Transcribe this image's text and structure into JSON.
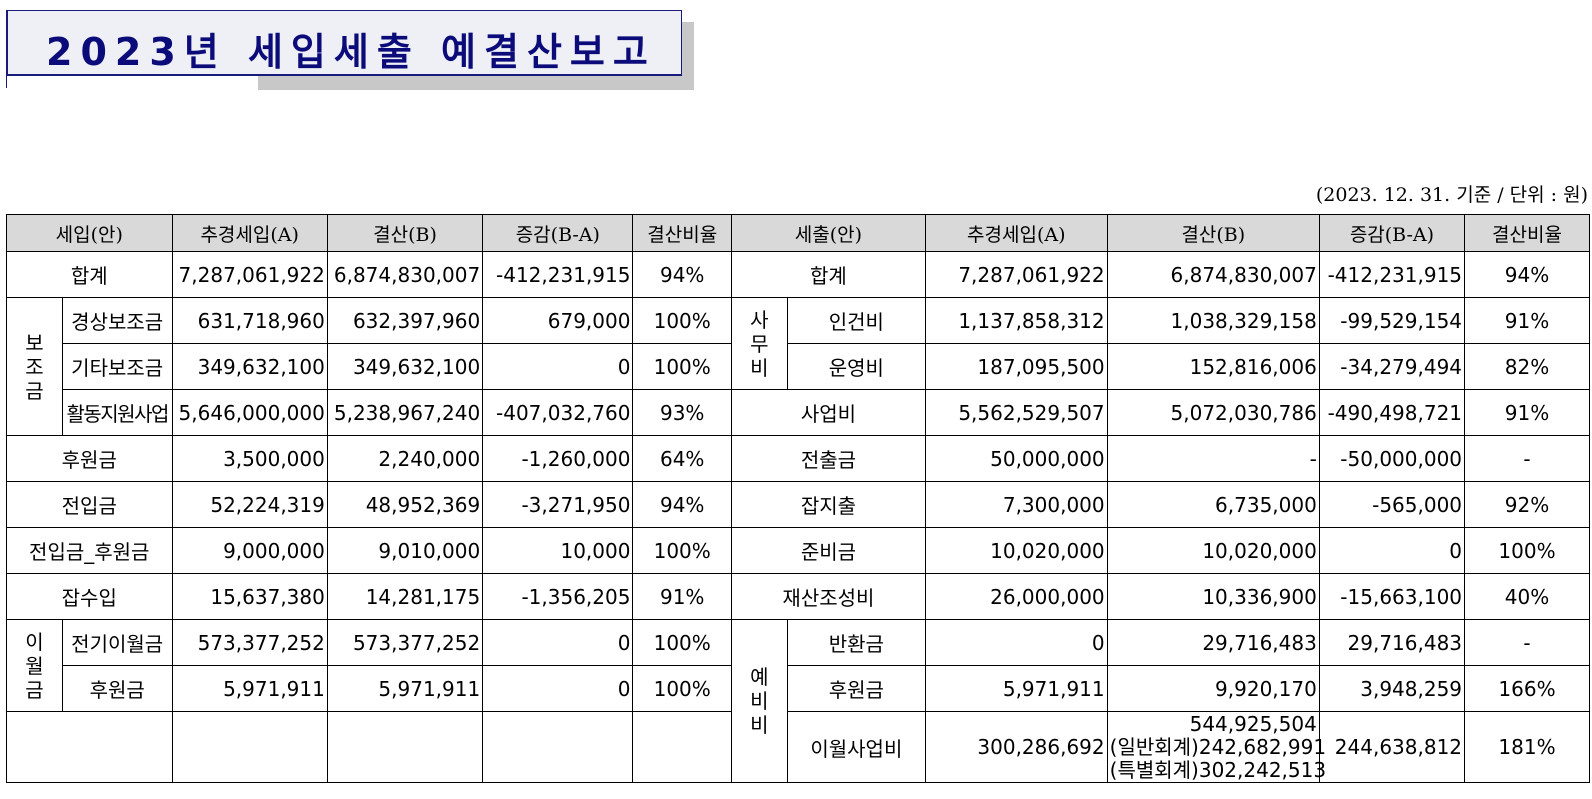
{
  "title": "2023년 세입세출 예결산보고",
  "basis": "(2023. 12. 31. 기준 / 단위 : 원)",
  "headers": {
    "income": "세입(안)",
    "income_plan": "추경세입(A)",
    "income_settle": "결산(B)",
    "income_diff": "증감(B-A)",
    "income_ratio": "결산비율",
    "expense": "세출(안)",
    "expense_plan": "추경세입(A)",
    "expense_settle": "결산(B)",
    "expense_diff": "증감(B-A)",
    "expense_ratio": "결산비율"
  },
  "groups": {
    "subsidy": [
      "보",
      "조",
      "금"
    ],
    "office": [
      "사",
      "무",
      "비"
    ],
    "carryover": [
      "이",
      "월",
      "금"
    ],
    "reserve": [
      "예",
      "비",
      "비"
    ]
  },
  "rows": [
    {
      "in_label": "합계",
      "in_a": "7,287,061,922",
      "in_b": "6,874,830,007",
      "in_d": "-412,231,915",
      "in_r": "94%",
      "ex_label": "합계",
      "ex_a": "7,287,061,922",
      "ex_b": "6,874,830,007",
      "ex_d": "-412,231,915",
      "ex_r": "94%"
    },
    {
      "in_label": "경상보조금",
      "in_a": "631,718,960",
      "in_b": "632,397,960",
      "in_d": "679,000",
      "in_r": "100%",
      "ex_label": "인건비",
      "ex_a": "1,137,858,312",
      "ex_b": "1,038,329,158",
      "ex_d": "-99,529,154",
      "ex_r": "91%"
    },
    {
      "in_label": "기타보조금",
      "in_a": "349,632,100",
      "in_b": "349,632,100",
      "in_d": "0",
      "in_r": "100%",
      "ex_label": "운영비",
      "ex_a": "187,095,500",
      "ex_b": "152,816,006",
      "ex_d": "-34,279,494",
      "ex_r": "82%"
    },
    {
      "in_label": "활동지원사업",
      "in_a": "5,646,000,000",
      "in_b": "5,238,967,240",
      "in_d": "-407,032,760",
      "in_r": "93%",
      "ex_label": "사업비",
      "ex_a": "5,562,529,507",
      "ex_b": "5,072,030,786",
      "ex_d": "-490,498,721",
      "ex_r": "91%"
    },
    {
      "in_label": "후원금",
      "in_a": "3,500,000",
      "in_b": "2,240,000",
      "in_d": "-1,260,000",
      "in_r": "64%",
      "ex_label": "전출금",
      "ex_a": "50,000,000",
      "ex_b": "-",
      "ex_d": "-50,000,000",
      "ex_r": "-"
    },
    {
      "in_label": "전입금",
      "in_a": "52,224,319",
      "in_b": "48,952,369",
      "in_d": "-3,271,950",
      "in_r": "94%",
      "ex_label": "잡지출",
      "ex_a": "7,300,000",
      "ex_b": "6,735,000",
      "ex_d": "-565,000",
      "ex_r": "92%"
    },
    {
      "in_label": "전입금_후원금",
      "in_a": "9,000,000",
      "in_b": "9,010,000",
      "in_d": "10,000",
      "in_r": "100%",
      "ex_label": "준비금",
      "ex_a": "10,020,000",
      "ex_b": "10,020,000",
      "ex_d": "0",
      "ex_r": "100%"
    },
    {
      "in_label": "잡수입",
      "in_a": "15,637,380",
      "in_b": "14,281,175",
      "in_d": "-1,356,205",
      "in_r": "91%",
      "ex_label": "재산조성비",
      "ex_a": "26,000,000",
      "ex_b": "10,336,900",
      "ex_d": "-15,663,100",
      "ex_r": "40%"
    },
    {
      "in_label": "전기이월금",
      "in_a": "573,377,252",
      "in_b": "573,377,252",
      "in_d": "0",
      "in_r": "100%",
      "ex_label": "반환금",
      "ex_a": "0",
      "ex_b": "29,716,483",
      "ex_d": "29,716,483",
      "ex_r": "-"
    },
    {
      "in_label": "후원금",
      "in_a": "5,971,911",
      "in_b": "5,971,911",
      "in_d": "0",
      "in_r": "100%",
      "ex_label": "후원금",
      "ex_a": "5,971,911",
      "ex_b": "9,920,170",
      "ex_d": "3,948,259",
      "ex_r": "166%"
    },
    {
      "ex_label": "이월사업비",
      "ex_a": "300,286,692",
      "ex_b_lines": [
        "544,925,504",
        "(일반회계)242,682,991",
        "(특별회계)302,242,513"
      ],
      "ex_d": "244,638,812",
      "ex_r": "181%"
    }
  ]
}
